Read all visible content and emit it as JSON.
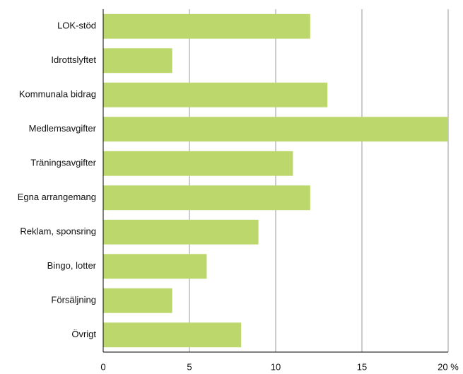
{
  "chart_data": {
    "type": "bar",
    "orientation": "horizontal",
    "categories": [
      "LOK-stöd",
      "Idrottslyftet",
      "Kommunala bidrag",
      "Medlemsavgifter",
      "Träningsavgifter",
      "Egna arrangemang",
      "Reklam, sponsring",
      "Bingo, lotter",
      "Försäljning",
      "Övrigt"
    ],
    "values": [
      12,
      4,
      13,
      20,
      11,
      12,
      9,
      6,
      4,
      8
    ],
    "color": "#bcd86c",
    "xlim": [
      0,
      20
    ],
    "xticks": [
      0,
      5,
      10,
      15,
      {
        "value": 20,
        "label": "20 %"
      }
    ],
    "grid": true
  }
}
